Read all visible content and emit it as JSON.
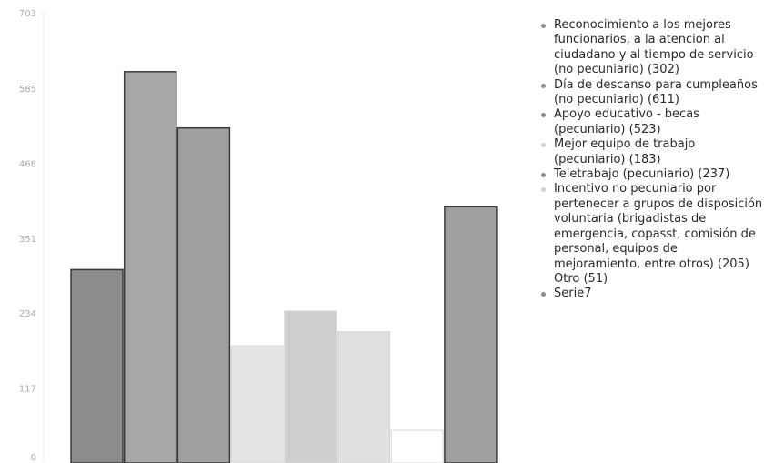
{
  "chart_data": {
    "type": "bar",
    "title": "",
    "xlabel": "",
    "ylabel": "",
    "ylim": [
      0,
      703
    ],
    "y_ticks": [
      {
        "value": 0,
        "label": "0"
      },
      {
        "value": 117,
        "label": "117"
      },
      {
        "value": 234,
        "label": "234"
      },
      {
        "value": 351,
        "label": "351"
      },
      {
        "value": 468,
        "label": "468"
      },
      {
        "value": 585,
        "label": "585"
      },
      {
        "value": 703,
        "label": "703"
      }
    ],
    "grid": false,
    "legend_position": "right",
    "series": [
      {
        "name": "Reconocimiento a los mejores funcionarios, a la atencion al ciudadano y al tiempo de servicio (no pecuniario) (302)",
        "value": 302,
        "color": "#8c8c8c",
        "legend_color": "#8c8c8c"
      },
      {
        "name": "Día de descanso para cumpleaños (no pecuniario) (611)",
        "value": 611,
        "color": "#a8a8a8",
        "legend_color": "#8c8c8c"
      },
      {
        "name": "Apoyo educativo - becas (pecuniario) (523)",
        "value": 523,
        "color": "#a0a0a0",
        "legend_color": "#8c8c8c"
      },
      {
        "name": "Mejor equipo de trabajo (pecuniario) (183)",
        "value": 183,
        "color": "#e4e4e4",
        "legend_color": "#d0d0d0"
      },
      {
        "name": "Teletrabajo (pecuniario) (237)",
        "value": 237,
        "color": "#cfcfcf",
        "legend_color": "#8c8c8c"
      },
      {
        "name": "Incentivo no pecuniario por pertenecer a grupos de disposición voluntaria (brigadistas de emergencia, copasst, comisión de personal, equipos de mejoramiento, entre otros) (205)",
        "value": 205,
        "color": "#e0e0e0",
        "legend_color": "#d0d0d0"
      },
      {
        "name": "Otro (51)",
        "value": 51,
        "color": "#ffffff",
        "legend_color": "#ffffff"
      },
      {
        "name": "Serie7",
        "value": 400,
        "color": "#a0a0a0",
        "legend_color": "#8c8c8c"
      }
    ]
  }
}
